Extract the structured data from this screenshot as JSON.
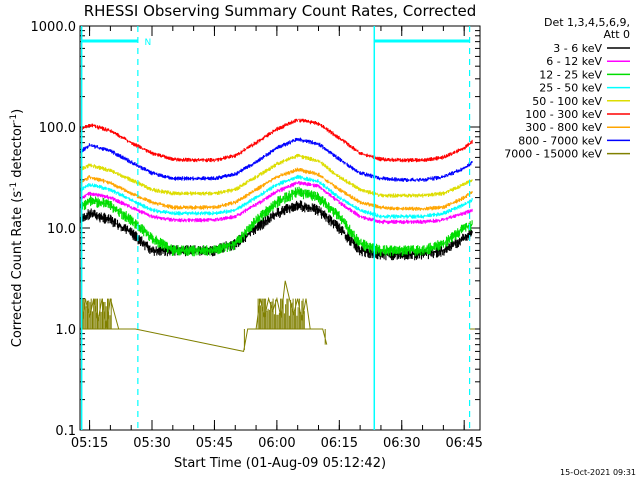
{
  "chart_data": {
    "type": "line",
    "title": "RHESSI Observing Summary Count Rates, Corrected",
    "xlabel": "Start Time (01-Aug-09 05:12:42)",
    "ylabel_main": "Corrected Count Rate (s",
    "ylabel_sup": "-1",
    "ylabel_mid": " detector",
    "ylabel_end": ")",
    "y_scale": "log",
    "ylim": [
      0.1,
      1000.0
    ],
    "y_ticks": [
      {
        "value": 0.1,
        "label": "0.1"
      },
      {
        "value": 1.0,
        "label": "1.0"
      },
      {
        "value": 10.0,
        "label": "10.0"
      },
      {
        "value": 100.0,
        "label": "100.0"
      },
      {
        "value": 1000.0,
        "label": "1000.0"
      }
    ],
    "x_range_minutes_of_day": [
      312.7,
      408.8
    ],
    "x_ticks": [
      {
        "value": 315,
        "label": "05:15"
      },
      {
        "value": 330,
        "label": "05:30"
      },
      {
        "value": 345,
        "label": "05:45"
      },
      {
        "value": 360,
        "label": "06:00"
      },
      {
        "value": 375,
        "label": "06:15"
      },
      {
        "value": 390,
        "label": "06:30"
      },
      {
        "value": 405,
        "label": "06:45"
      }
    ],
    "legend_position": "right",
    "legend_header_1": "Det 1,3,4,5,6,9,",
    "legend_header_2": "Att 0",
    "series": [
      {
        "name": "3 - 6 keV",
        "color": "#000000",
        "x": [
          313,
          315,
          320,
          325,
          330,
          335,
          340,
          345,
          350,
          355,
          360,
          365,
          370,
          375,
          380,
          385,
          390,
          395,
          400,
          405,
          407
        ],
        "values": [
          12,
          14,
          12,
          9,
          6,
          6,
          6,
          6,
          7,
          10,
          14,
          17,
          15,
          10,
          6,
          5.5,
          5.5,
          5.5,
          6,
          8,
          9
        ]
      },
      {
        "name": "6 - 12 keV",
        "color": "#ff00ff",
        "x": [
          313,
          315,
          320,
          325,
          330,
          335,
          340,
          345,
          350,
          355,
          360,
          365,
          370,
          375,
          380,
          385,
          390,
          395,
          400,
          405,
          407
        ],
        "values": [
          20,
          22,
          20,
          16,
          13,
          12,
          12,
          12,
          13,
          17,
          23,
          28,
          26,
          18,
          13,
          11.5,
          11.5,
          11.5,
          12,
          14,
          15
        ]
      },
      {
        "name": "12 - 25 keV",
        "color": "#00dd00",
        "x": [
          313,
          315,
          320,
          325,
          330,
          335,
          340,
          345,
          350,
          355,
          360,
          365,
          370,
          375,
          380,
          385,
          390,
          395,
          400,
          405,
          407
        ],
        "values": [
          16,
          19,
          17,
          12,
          8,
          6,
          6,
          6,
          7,
          12,
          18,
          23,
          20,
          13,
          7,
          6,
          6,
          6,
          7,
          10,
          11
        ]
      },
      {
        "name": "25 - 50 keV",
        "color": "#00ffff",
        "x": [
          313,
          315,
          320,
          325,
          330,
          335,
          340,
          345,
          350,
          355,
          360,
          365,
          370,
          375,
          380,
          385,
          390,
          395,
          400,
          405,
          407
        ],
        "values": [
          24,
          27,
          24,
          19,
          15,
          14,
          14,
          14,
          15,
          20,
          27,
          32,
          29,
          20,
          15,
          13,
          13,
          13,
          14,
          17,
          19
        ]
      },
      {
        "name": "50 - 100 keV",
        "color": "#dddd00",
        "x": [
          313,
          315,
          320,
          325,
          330,
          335,
          340,
          345,
          350,
          355,
          360,
          365,
          370,
          375,
          380,
          385,
          390,
          395,
          400,
          405,
          407
        ],
        "values": [
          38,
          42,
          37,
          30,
          24,
          22,
          22,
          22,
          24,
          32,
          43,
          52,
          46,
          32,
          24,
          21,
          21,
          21,
          22,
          27,
          30
        ]
      },
      {
        "name": "100 - 300 keV",
        "color": "#ff0000",
        "x": [
          313,
          315,
          320,
          325,
          330,
          335,
          340,
          345,
          350,
          355,
          360,
          365,
          370,
          375,
          380,
          385,
          390,
          395,
          400,
          405,
          407
        ],
        "values": [
          95,
          105,
          92,
          70,
          55,
          48,
          47,
          47,
          52,
          70,
          95,
          118,
          108,
          78,
          55,
          48,
          47,
          47,
          50,
          62,
          72
        ]
      },
      {
        "name": "300 - 800 keV",
        "color": "#ffa500",
        "x": [
          313,
          315,
          320,
          325,
          330,
          335,
          340,
          345,
          350,
          355,
          360,
          365,
          370,
          375,
          380,
          385,
          390,
          395,
          400,
          405,
          407
        ],
        "values": [
          28,
          32,
          28,
          22,
          18,
          16,
          16,
          16,
          18,
          24,
          32,
          38,
          34,
          24,
          18,
          16,
          15.5,
          15.5,
          16,
          20,
          23
        ]
      },
      {
        "name": "800 - 7000 keV",
        "color": "#0000ff",
        "x": [
          313,
          315,
          320,
          325,
          330,
          335,
          340,
          345,
          350,
          355,
          360,
          365,
          370,
          375,
          380,
          385,
          390,
          395,
          400,
          405,
          407
        ],
        "values": [
          58,
          66,
          58,
          45,
          35,
          31,
          31,
          31,
          34,
          45,
          62,
          76,
          68,
          48,
          35,
          31,
          30,
          30,
          32,
          39,
          45
        ]
      },
      {
        "name": "7000 - 15000 keV",
        "color": "#808000",
        "x": [
          313,
          314,
          315,
          316,
          317,
          318,
          319,
          320,
          322,
          325,
          326,
          352,
          353,
          355,
          356,
          357,
          358,
          359,
          360,
          361,
          362,
          363,
          364,
          365,
          366,
          367,
          368,
          369,
          370,
          371,
          372
        ],
        "values": [
          1.0,
          2.0,
          1.3,
          2.0,
          1.2,
          2.0,
          1.0,
          2.0,
          1.0,
          1.0,
          1.0,
          0.6,
          1.0,
          1.0,
          2.0,
          1.3,
          2.0,
          1.5,
          2.0,
          1.3,
          3.0,
          2.0,
          1.4,
          2.0,
          1.2,
          2.0,
          1.0,
          1.0,
          1.0,
          1.0,
          0.7
        ]
      }
    ],
    "annotations": {
      "vertical_solid_minutes": [
        313.1,
        383.4
      ],
      "vertical_dashed_minutes": [
        326.6,
        406.3
      ],
      "flag_label": "N"
    },
    "timestamp": "15-Oct-2021 09:31"
  }
}
